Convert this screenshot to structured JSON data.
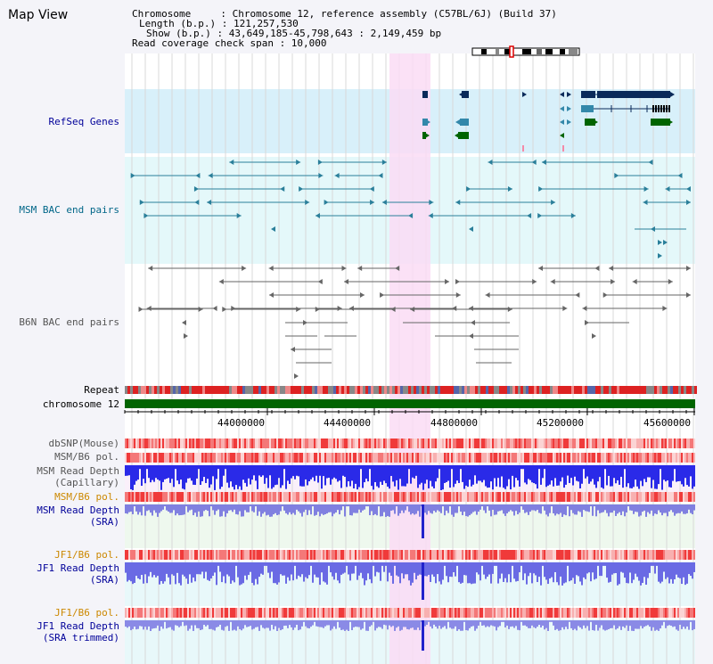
{
  "title": "Map View",
  "info": {
    "line1": "Chromosome     : Chromosome 12, reference assembly (C57BL/6J) (Build 37)",
    "line2": "Length (b.p.) : 121,257,530",
    "line3": "Show (b.p.) : 43,649,185-45,798,643 : 2,149,459 bp",
    "line4": "Read coverage check span : 10,000"
  },
  "tracks": {
    "refseq": "RefSeq Genes",
    "msm_bac": "MSM BAC end pairs",
    "b6n_bac": "B6N BAC end pairs",
    "repeat": "Repeat",
    "chromosome": "chromosome 12",
    "dbsnp": "dbSNP(Mouse)",
    "msm_b6_pol_1": "MSM/B6 pol.",
    "msm_depth_cap_1": "MSM Read Depth",
    "msm_depth_cap_2": "(Capillary)",
    "msm_b6_pol_2": "MSM/B6 pol.",
    "msm_depth_sra_1": "MSM Read Depth",
    "msm_depth_sra_2": "(SRA)",
    "jf1_b6_pol_1": "JF1/B6 pol.",
    "jf1_depth_sra_1": "JF1 Read Depth",
    "jf1_depth_sra_2": "(SRA)",
    "jf1_b6_pol_2": "JF1/B6 pol.",
    "jf1_depth_trim_1": "JF1 Read Depth",
    "jf1_depth_trim_2": "(SRA trimmed)"
  },
  "axis": {
    "ticks": [
      "44000000",
      "44400000",
      "44800000",
      "45200000",
      "45600000"
    ]
  },
  "colors": {
    "refseq_bg": "#d8f0fa",
    "msm_bac_bg": "#e4f8fa",
    "highlight": "#fadcf4",
    "chromosome_bar": "#006400",
    "label_blue": "#000099",
    "label_teal": "#006688",
    "label_gray": "#555555",
    "label_orange": "#cc8800"
  }
}
